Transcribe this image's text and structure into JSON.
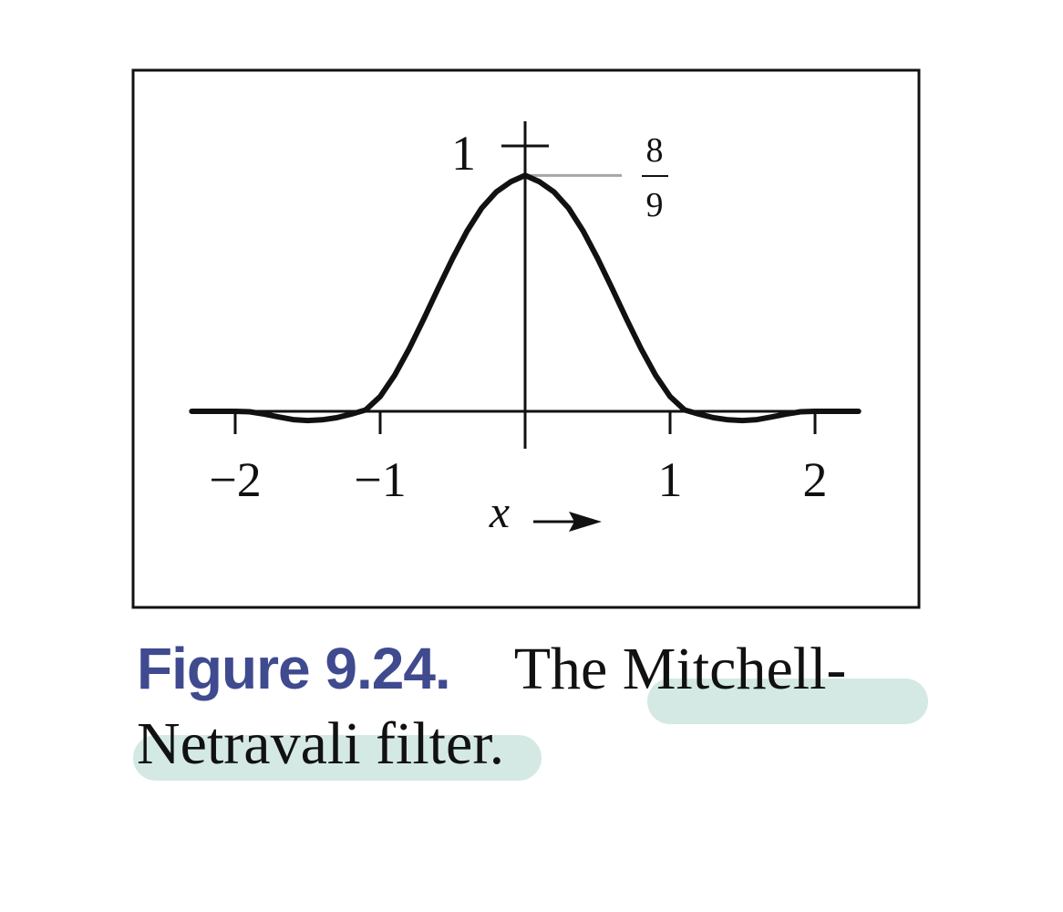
{
  "chart_data": {
    "type": "line",
    "title": "",
    "xlabel": "x →",
    "ylabel": "",
    "xlim": [
      -2.3,
      2.3
    ],
    "ylim": [
      -0.05,
      1.0
    ],
    "x_ticks": [
      {
        "value": -2,
        "label": "−2"
      },
      {
        "value": -1,
        "label": "−1"
      },
      {
        "value": 1,
        "label": "1"
      },
      {
        "value": 2,
        "label": "2"
      }
    ],
    "y_ticks": [
      {
        "value": 1,
        "label": "1"
      }
    ],
    "annotation": {
      "y": 0.8889,
      "numerator": "8",
      "denominator": "9"
    },
    "grid": false,
    "legend": "none",
    "series": [
      {
        "x": [
          -2.3,
          -2.0,
          -1.9,
          -1.8,
          -1.7,
          -1.6,
          -1.5,
          -1.4,
          -1.3,
          -1.2,
          -1.1,
          -1.0,
          -0.9,
          -0.8,
          -0.7,
          -0.6,
          -0.5,
          -0.4,
          -0.3,
          -0.2,
          -0.1,
          0.0,
          0.1,
          0.2,
          0.3,
          0.4,
          0.5,
          0.6,
          0.7,
          0.8,
          0.9,
          1.0,
          1.1,
          1.2,
          1.3,
          1.4,
          1.5,
          1.6,
          1.7,
          1.8,
          1.9,
          2.0,
          2.3
        ],
        "y": [
          0.0,
          0.0,
          -0.0018,
          -0.0107,
          -0.0213,
          -0.0313,
          -0.0347,
          -0.032,
          -0.024,
          -0.0107,
          0.005,
          0.0556,
          0.136,
          0.2356,
          0.3471,
          0.4631,
          0.5764,
          0.6796,
          0.7653,
          0.8262,
          0.8646,
          0.8889,
          0.8646,
          0.8262,
          0.7653,
          0.6796,
          0.5764,
          0.4631,
          0.3471,
          0.2356,
          0.136,
          0.0556,
          0.005,
          -0.0107,
          -0.024,
          -0.032,
          -0.0347,
          -0.0313,
          -0.0213,
          -0.0107,
          -0.0018,
          0.0,
          0.0
        ]
      }
    ]
  },
  "caption": {
    "label": "Figure 9.24.",
    "line1": "The Mitchell-",
    "line2": "Netravali filter."
  },
  "colors": {
    "curve": "#111111",
    "annotation_line": "#a6a6a6",
    "caption_label": "#3f4a8f",
    "highlight": "#d4e9e4"
  }
}
